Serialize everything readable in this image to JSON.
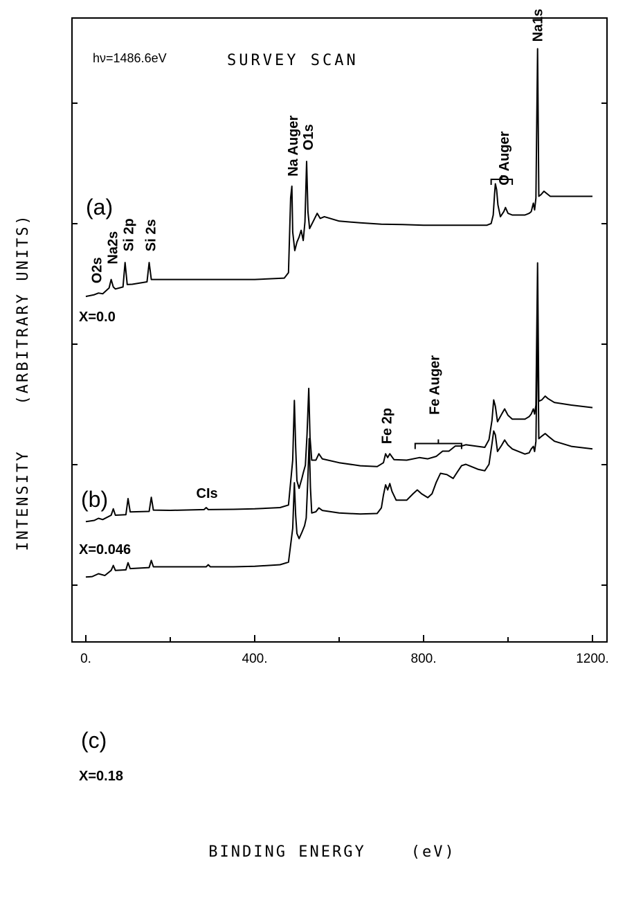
{
  "chart_data": {
    "type": "line",
    "title": "hν=1486.6eV",
    "subtitle": "SURVEY SCAN",
    "xlabel": "BINDING ENERGY    (eV)",
    "ylabel": "INTENSITY    (ARBITRARY UNITS)",
    "xlim": [
      0,
      1200
    ],
    "x_ticks": [
      0,
      400,
      800,
      1200
    ],
    "x_tick_labels": [
      "0.",
      "400.",
      "800.",
      "1200."
    ],
    "y_scale": "arbitrary (spectra offset vertically)",
    "grid": false,
    "series": [
      {
        "name": "(a)",
        "composition": "X=0.0",
        "points": [
          [
            0,
            1.0
          ],
          [
            20,
            1.5
          ],
          [
            30,
            2.0
          ],
          [
            40,
            1.8
          ],
          [
            55,
            3.5
          ],
          [
            60,
            6.0
          ],
          [
            65,
            3.8
          ],
          [
            70,
            3.2
          ],
          [
            88,
            3.8
          ],
          [
            93,
            11.0
          ],
          [
            98,
            4.5
          ],
          [
            110,
            4.6
          ],
          [
            145,
            5.3
          ],
          [
            150,
            11.0
          ],
          [
            155,
            6.0
          ],
          [
            170,
            6.0
          ],
          [
            250,
            6.0
          ],
          [
            300,
            6.0
          ],
          [
            400,
            6.0
          ],
          [
            470,
            6.4
          ],
          [
            480,
            8.0
          ],
          [
            485,
            30.0
          ],
          [
            488,
            33.5
          ],
          [
            490,
            20.0
          ],
          [
            495,
            14.5
          ],
          [
            500,
            17.0
          ],
          [
            505,
            18.5
          ],
          [
            510,
            20.5
          ],
          [
            515,
            17.5
          ],
          [
            519,
            23.0
          ],
          [
            523,
            40.8
          ],
          [
            526,
            26.0
          ],
          [
            530,
            21.0
          ],
          [
            540,
            23.5
          ],
          [
            548,
            25.5
          ],
          [
            555,
            24.0
          ],
          [
            565,
            24.5
          ],
          [
            600,
            23.2
          ],
          [
            650,
            22.7
          ],
          [
            700,
            22.3
          ],
          [
            750,
            22.2
          ],
          [
            800,
            22.0
          ],
          [
            900,
            22.0
          ],
          [
            950,
            22.0
          ],
          [
            960,
            22.5
          ],
          [
            965,
            25.0
          ],
          [
            968,
            31.0
          ],
          [
            970,
            34.2
          ],
          [
            973,
            32.5
          ],
          [
            976,
            28.0
          ],
          [
            982,
            24.5
          ],
          [
            990,
            26.0
          ],
          [
            994,
            27.2
          ],
          [
            1000,
            25.5
          ],
          [
            1010,
            25.0
          ],
          [
            1040,
            25.0
          ],
          [
            1050,
            25.5
          ],
          [
            1055,
            26.0
          ],
          [
            1060,
            28.5
          ],
          [
            1063,
            26.5
          ],
          [
            1066,
            30.0
          ],
          [
            1070,
            74.0
          ],
          [
            1073,
            30.5
          ],
          [
            1078,
            31.0
          ],
          [
            1085,
            32.0
          ],
          [
            1090,
            31.5
          ],
          [
            1100,
            30.5
          ],
          [
            1130,
            30.5
          ],
          [
            1200,
            30.5
          ]
        ],
        "peak_labels": [
          {
            "text": "O2s",
            "x": 25
          },
          {
            "text": "Na2s",
            "x": 63
          },
          {
            "text": "Si 2p",
            "x": 101
          },
          {
            "text": "Si 2s",
            "x": 153
          },
          {
            "text": "Na Auger",
            "x": 490
          },
          {
            "text": "O1s",
            "x": 526
          },
          {
            "text": "O Auger",
            "x": 990
          },
          {
            "text": "Na1s",
            "x": 1070
          }
        ]
      },
      {
        "name": "(b)",
        "composition": "X=0.046",
        "points": [
          [
            0,
            1.0
          ],
          [
            20,
            1.5
          ],
          [
            30,
            2.3
          ],
          [
            40,
            1.8
          ],
          [
            60,
            3.5
          ],
          [
            65,
            6.0
          ],
          [
            70,
            3.5
          ],
          [
            95,
            3.7
          ],
          [
            100,
            10.0
          ],
          [
            105,
            4.8
          ],
          [
            150,
            5.0
          ],
          [
            155,
            10.5
          ],
          [
            160,
            5.5
          ],
          [
            200,
            5.4
          ],
          [
            280,
            5.7
          ],
          [
            285,
            6.5
          ],
          [
            290,
            5.7
          ],
          [
            350,
            5.8
          ],
          [
            400,
            6.0
          ],
          [
            460,
            6.5
          ],
          [
            480,
            7.5
          ],
          [
            490,
            25.0
          ],
          [
            494,
            48.3
          ],
          [
            497,
            30.0
          ],
          [
            500,
            17.0
          ],
          [
            505,
            14.0
          ],
          [
            512,
            18.0
          ],
          [
            515,
            20.0
          ],
          [
            520,
            23.0
          ],
          [
            524,
            35.0
          ],
          [
            528,
            53.0
          ],
          [
            531,
            34.0
          ],
          [
            535,
            25.0
          ],
          [
            545,
            25.0
          ],
          [
            552,
            27.5
          ],
          [
            560,
            25.5
          ],
          [
            600,
            24.0
          ],
          [
            650,
            22.8
          ],
          [
            690,
            22.5
          ],
          [
            705,
            24.0
          ],
          [
            710,
            27.5
          ],
          [
            715,
            26.0
          ],
          [
            720,
            27.5
          ],
          [
            730,
            25.2
          ],
          [
            760,
            25.0
          ],
          [
            790,
            26.0
          ],
          [
            810,
            25.5
          ],
          [
            830,
            26.5
          ],
          [
            845,
            28.5
          ],
          [
            860,
            28.5
          ],
          [
            875,
            30.5
          ],
          [
            890,
            30.5
          ],
          [
            900,
            31.0
          ],
          [
            945,
            30.0
          ],
          [
            955,
            33.0
          ],
          [
            962,
            40.5
          ],
          [
            966,
            48.5
          ],
          [
            970,
            46.0
          ],
          [
            975,
            40.0
          ],
          [
            985,
            43.0
          ],
          [
            992,
            45.0
          ],
          [
            1000,
            42.5
          ],
          [
            1010,
            41.0
          ],
          [
            1040,
            41.0
          ],
          [
            1050,
            42.0
          ],
          [
            1055,
            43.0
          ],
          [
            1060,
            45.0
          ],
          [
            1063,
            43.0
          ],
          [
            1066,
            46.5
          ],
          [
            1070,
            102.0
          ],
          [
            1073,
            48.0
          ],
          [
            1080,
            48.5
          ],
          [
            1088,
            50.0
          ],
          [
            1095,
            49.0
          ],
          [
            1110,
            47.5
          ],
          [
            1150,
            46.5
          ],
          [
            1200,
            45.5
          ]
        ],
        "peak_labels": [
          {
            "text": "CIs",
            "x": 287
          },
          {
            "text": "Fe 2p",
            "x": 712
          },
          {
            "text": "Fe Auger",
            "x": 825
          }
        ]
      },
      {
        "name": "(c)",
        "composition": "X=0.18",
        "points": [
          [
            0,
            1.0
          ],
          [
            15,
            1.2
          ],
          [
            30,
            2.3
          ],
          [
            45,
            1.6
          ],
          [
            60,
            3.6
          ],
          [
            65,
            5.5
          ],
          [
            70,
            3.6
          ],
          [
            95,
            3.8
          ],
          [
            100,
            6.6
          ],
          [
            105,
            4.3
          ],
          [
            150,
            4.7
          ],
          [
            155,
            7.5
          ],
          [
            160,
            5.0
          ],
          [
            200,
            5.0
          ],
          [
            285,
            5.0
          ],
          [
            290,
            5.8
          ],
          [
            295,
            5.0
          ],
          [
            350,
            5.0
          ],
          [
            400,
            5.2
          ],
          [
            460,
            5.8
          ],
          [
            480,
            6.8
          ],
          [
            490,
            20.0
          ],
          [
            494,
            37.8
          ],
          [
            497,
            25.0
          ],
          [
            500,
            18.0
          ],
          [
            505,
            16.0
          ],
          [
            512,
            18.5
          ],
          [
            518,
            21.0
          ],
          [
            522,
            24.0
          ],
          [
            526,
            40.0
          ],
          [
            529,
            55.0
          ],
          [
            532,
            36.0
          ],
          [
            535,
            26.0
          ],
          [
            545,
            26.5
          ],
          [
            552,
            28.0
          ],
          [
            560,
            27.0
          ],
          [
            600,
            26.0
          ],
          [
            650,
            25.6
          ],
          [
            690,
            25.8
          ],
          [
            700,
            28.0
          ],
          [
            705,
            33.0
          ],
          [
            710,
            37.0
          ],
          [
            715,
            35.0
          ],
          [
            720,
            37.5
          ],
          [
            725,
            34.5
          ],
          [
            735,
            31.0
          ],
          [
            760,
            31.0
          ],
          [
            775,
            33.5
          ],
          [
            785,
            35.0
          ],
          [
            795,
            33.5
          ],
          [
            810,
            32.0
          ],
          [
            820,
            33.5
          ],
          [
            830,
            38.0
          ],
          [
            840,
            41.5
          ],
          [
            855,
            41.0
          ],
          [
            870,
            39.5
          ],
          [
            880,
            42.0
          ],
          [
            890,
            44.5
          ],
          [
            900,
            45.0
          ],
          [
            915,
            44.0
          ],
          [
            930,
            43.0
          ],
          [
            945,
            42.5
          ],
          [
            955,
            45.0
          ],
          [
            962,
            53.0
          ],
          [
            966,
            58.0
          ],
          [
            970,
            56.5
          ],
          [
            975,
            50.0
          ],
          [
            985,
            52.5
          ],
          [
            992,
            54.5
          ],
          [
            1000,
            52.5
          ],
          [
            1010,
            51.0
          ],
          [
            1040,
            49.0
          ],
          [
            1050,
            49.5
          ],
          [
            1055,
            51.0
          ],
          [
            1060,
            52.0
          ],
          [
            1063,
            50.0
          ],
          [
            1066,
            54.0
          ],
          [
            1070,
            102.0
          ],
          [
            1073,
            55.0
          ],
          [
            1080,
            56.0
          ],
          [
            1088,
            57.0
          ],
          [
            1095,
            56.0
          ],
          [
            1110,
            54.0
          ],
          [
            1150,
            52.0
          ],
          [
            1200,
            51.0
          ]
        ],
        "peak_labels": []
      }
    ]
  }
}
